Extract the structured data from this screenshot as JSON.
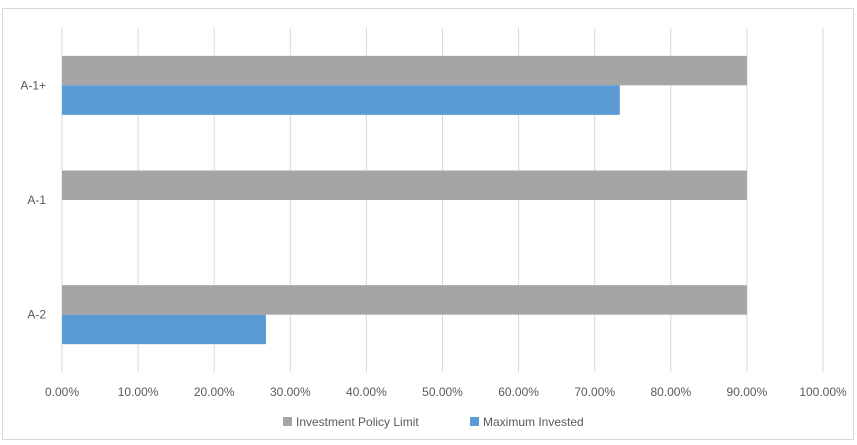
{
  "chart_data": {
    "type": "bar",
    "orientation": "horizontal",
    "categories": [
      "A-1+",
      "A-1",
      "A-2"
    ],
    "series": [
      {
        "name": "Investment Policy Limit",
        "values": [
          0.9,
          0.9,
          0.9
        ],
        "color": "#a5a5a5"
      },
      {
        "name": "Maximum Invested",
        "values": [
          0.733,
          0.0,
          0.268
        ],
        "color": "#5b9bd5"
      }
    ],
    "xlim": [
      0,
      1.0
    ],
    "x_ticks": [
      0,
      0.1,
      0.2,
      0.3,
      0.4,
      0.5,
      0.6,
      0.7,
      0.8,
      0.9,
      1.0
    ],
    "x_tick_labels": [
      "0.00%",
      "10.00%",
      "20.00%",
      "30.00%",
      "40.00%",
      "50.00%",
      "60.00%",
      "70.00%",
      "80.00%",
      "90.00%",
      "100.00%"
    ],
    "grid": true,
    "legend_position": "bottom",
    "title": "",
    "xlabel": "",
    "ylabel": ""
  }
}
